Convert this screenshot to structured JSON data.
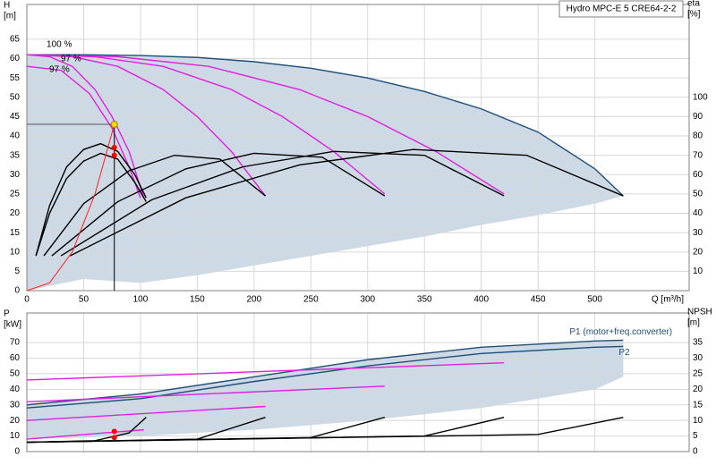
{
  "chart_data": [
    {
      "type": "line",
      "legend_title": "Hydro MPC-E 5 CRE64-2-2",
      "ylabel": [
        "H",
        "[m]"
      ],
      "y2label": [
        "eta",
        "[%]"
      ],
      "xlabel": "Q [m³/h]",
      "xlim": [
        0,
        583
      ],
      "xticks": [
        0,
        50,
        100,
        150,
        200,
        250,
        300,
        350,
        400,
        450,
        500
      ],
      "ylim": [
        0,
        74
      ],
      "yticks": [
        0,
        5,
        10,
        15,
        20,
        25,
        30,
        35,
        40,
        45,
        50,
        55,
        60,
        65
      ],
      "y2lim": [
        0,
        148
      ],
      "y2ticks": [
        10,
        20,
        30,
        40,
        50,
        60,
        70,
        80,
        90,
        100
      ],
      "grid": true,
      "show_xtick_labels": true,
      "annotations": [
        "100 %",
        "97 %",
        "97 %"
      ],
      "series": [
        {
          "color": "#1f4e79",
          "fill": "#cdd9e4",
          "x": [
            0,
            50,
            100,
            150,
            200,
            250,
            300,
            350,
            400,
            450,
            500,
            525
          ],
          "values": [
            61,
            61,
            60.8,
            60.3,
            59.2,
            57.5,
            55,
            51.5,
            47,
            41,
            31.5,
            24.5
          ],
          "lower": [
            0,
            3,
            2,
            4,
            6.5,
            9,
            11.5,
            14,
            17,
            19.5,
            22.5,
            24.5
          ]
        },
        {
          "color": "#e020e0",
          "x": [
            0,
            20,
            40,
            60,
            75,
            90,
            103
          ],
          "values": [
            61,
            60.5,
            58,
            52,
            45,
            36,
            24
          ]
        },
        {
          "color": "#e020e0",
          "x": [
            0,
            40,
            80,
            120,
            150,
            180,
            210
          ],
          "values": [
            61,
            60.5,
            58,
            52,
            45,
            36,
            24.5
          ]
        },
        {
          "color": "#e020e0",
          "x": [
            0,
            60,
            120,
            180,
            225,
            270,
            315
          ],
          "values": [
            61,
            60.5,
            58,
            52,
            45,
            36,
            25
          ]
        },
        {
          "color": "#e020e0",
          "x": [
            0,
            80,
            160,
            240,
            300,
            360,
            420
          ],
          "values": [
            61,
            60.5,
            58,
            52,
            45,
            36,
            25
          ]
        },
        {
          "color": "#e020e0",
          "x": [
            0,
            30,
            55,
            75,
            90,
            100
          ],
          "values": [
            58,
            57,
            51,
            42,
            32,
            24
          ]
        },
        {
          "color": "#000000",
          "axis": "y2",
          "x": [
            8,
            20,
            35,
            50,
            65,
            80,
            95,
            105
          ],
          "values": [
            18,
            44,
            64,
            73,
            76,
            72,
            60,
            48
          ]
        },
        {
          "color": "#000000",
          "axis": "y2",
          "x": [
            8,
            20,
            35,
            50,
            65,
            80,
            95,
            105
          ],
          "values": [
            18,
            40,
            58,
            67,
            71,
            68,
            56,
            46
          ]
        },
        {
          "color": "#000000",
          "axis": "y2",
          "x": [
            15,
            50,
            90,
            130,
            170,
            210
          ],
          "values": [
            18,
            45,
            62,
            70,
            68,
            49
          ]
        },
        {
          "color": "#000000",
          "axis": "y2",
          "x": [
            22,
            80,
            140,
            200,
            260,
            315
          ],
          "values": [
            18,
            46,
            63,
            71,
            69,
            49
          ]
        },
        {
          "color": "#000000",
          "axis": "y2",
          "x": [
            30,
            110,
            190,
            270,
            350,
            420
          ],
          "values": [
            18,
            47,
            64,
            72,
            70,
            49
          ]
        },
        {
          "color": "#000000",
          "axis": "y2",
          "x": [
            38,
            140,
            240,
            340,
            440,
            525
          ],
          "values": [
            18,
            48,
            65,
            73,
            70,
            49
          ]
        },
        {
          "color": "#ff2020",
          "x": [
            0,
            20,
            40,
            60,
            77
          ],
          "values": [
            0,
            2,
            10,
            25,
            43
          ]
        }
      ],
      "operating_point": {
        "x": 77,
        "y": 43
      },
      "points": [
        {
          "x": 77,
          "y": 37,
          "color": "#ff0000"
        },
        {
          "x": 77,
          "y": 35,
          "color": "#ff0000"
        }
      ]
    },
    {
      "type": "line",
      "ylabel": [
        "P",
        "[kW]"
      ],
      "y2label": [
        "NPSH",
        "[m]"
      ],
      "xlim": [
        0,
        583
      ],
      "xticks": [
        0,
        50,
        100,
        150,
        200,
        250,
        300,
        350,
        400,
        450,
        500
      ],
      "ylim": [
        0,
        89
      ],
      "yticks": [
        0,
        10,
        20,
        30,
        40,
        50,
        60,
        70
      ],
      "y2lim": [
        0,
        44.5
      ],
      "y2ticks": [
        0,
        5,
        10,
        15,
        20,
        25,
        30,
        35
      ],
      "grid": true,
      "show_xtick_labels": false,
      "series": [
        {
          "name": "P1 (motor+freq.converter)",
          "color": "#1f4e79",
          "fill": "#cdd9e4",
          "x": [
            0,
            100,
            200,
            300,
            400,
            500,
            525
          ],
          "values": [
            30,
            37,
            48,
            59,
            67,
            71,
            71.5
          ],
          "lower": [
            8,
            10,
            14,
            20,
            28,
            40,
            48
          ]
        },
        {
          "name": "P2",
          "color": "#1f4e79",
          "x": [
            0,
            100,
            200,
            300,
            400,
            500,
            525
          ],
          "values": [
            28,
            34,
            45,
            55,
            63,
            67,
            67.5
          ]
        },
        {
          "color": "#e020e0",
          "x": [
            0,
            103
          ],
          "values": [
            8,
            14
          ]
        },
        {
          "color": "#e020e0",
          "x": [
            0,
            210
          ],
          "values": [
            20,
            29
          ]
        },
        {
          "color": "#e020e0",
          "x": [
            0,
            315
          ],
          "values": [
            32,
            42
          ]
        },
        {
          "color": "#e020e0",
          "x": [
            0,
            420
          ],
          "values": [
            46,
            57
          ]
        },
        {
          "color": "#000000",
          "axis": "y2",
          "x": [
            0,
            60,
            90,
            105
          ],
          "values": [
            3,
            3.5,
            6,
            11
          ]
        },
        {
          "color": "#000000",
          "axis": "y2",
          "x": [
            0,
            150,
            210
          ],
          "values": [
            3,
            4,
            11
          ]
        },
        {
          "color": "#000000",
          "axis": "y2",
          "x": [
            0,
            250,
            315
          ],
          "values": [
            3,
            4.5,
            11
          ]
        },
        {
          "color": "#000000",
          "axis": "y2",
          "x": [
            0,
            350,
            420
          ],
          "values": [
            3,
            5,
            11
          ]
        },
        {
          "color": "#000000",
          "axis": "y2",
          "x": [
            0,
            450,
            525
          ],
          "values": [
            3,
            5.5,
            11
          ]
        }
      ],
      "points": [
        {
          "x": 77,
          "y": 13,
          "color": "#ff0000"
        },
        {
          "x": 77,
          "y": 9,
          "color": "#ff0000"
        }
      ]
    }
  ]
}
